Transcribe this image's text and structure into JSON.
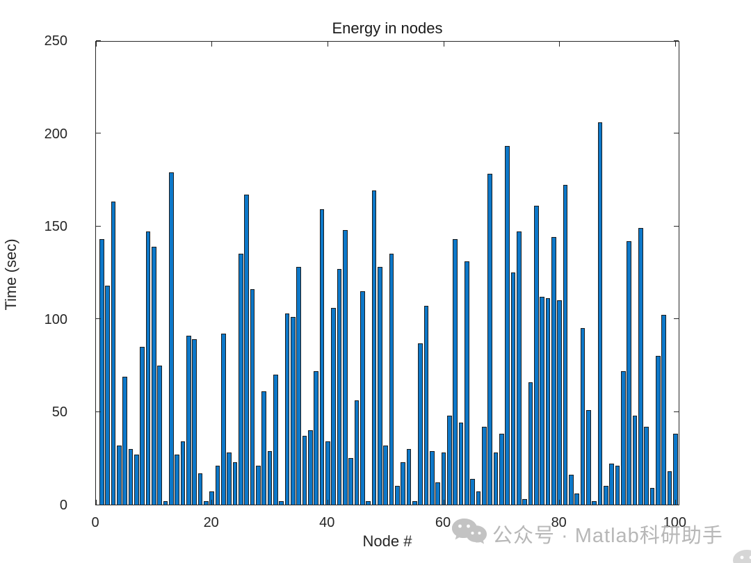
{
  "title": "Energy in nodes",
  "xlabel": "Node #",
  "ylabel": "Time (sec)",
  "watermark": {
    "icon": "wechat-icon",
    "text": "公众号 · Matlab科研助手"
  },
  "chart_data": {
    "type": "bar",
    "title": "Energy in nodes",
    "xlabel": "Node #",
    "ylabel": "Time (sec)",
    "x": [
      1,
      2,
      3,
      4,
      5,
      6,
      7,
      8,
      9,
      10,
      11,
      12,
      13,
      14,
      15,
      16,
      17,
      18,
      19,
      20,
      21,
      22,
      23,
      24,
      25,
      26,
      27,
      28,
      29,
      30,
      31,
      32,
      33,
      34,
      35,
      36,
      37,
      38,
      39,
      40,
      41,
      42,
      43,
      44,
      45,
      46,
      47,
      48,
      49,
      50,
      51,
      52,
      53,
      54,
      55,
      56,
      57,
      58,
      59,
      60,
      61,
      62,
      63,
      64,
      65,
      66,
      67,
      68,
      69,
      70,
      71,
      72,
      73,
      74,
      75,
      76,
      77,
      78,
      79,
      80,
      81,
      82,
      83,
      84,
      85,
      86,
      87,
      88,
      89,
      90,
      91,
      92,
      93,
      94,
      95,
      96,
      97,
      98,
      99,
      100
    ],
    "values": [
      143,
      118,
      163,
      32,
      69,
      30,
      27,
      85,
      147,
      139,
      75,
      2,
      179,
      27,
      34,
      91,
      89,
      17,
      2,
      7,
      21,
      92,
      28,
      23,
      135,
      167,
      116,
      21,
      61,
      29,
      70,
      2,
      103,
      101,
      128,
      37,
      40,
      72,
      159,
      34,
      106,
      127,
      148,
      25,
      56,
      115,
      2,
      169,
      128,
      32,
      135,
      10,
      23,
      30,
      2,
      87,
      107,
      29,
      12,
      28,
      48,
      143,
      44,
      131,
      14,
      7,
      42,
      178,
      28,
      38,
      193,
      125,
      147,
      3,
      66,
      161,
      112,
      111,
      144,
      110,
      172,
      16,
      6,
      95,
      51,
      2,
      206,
      10,
      22,
      21,
      72,
      142,
      48,
      149,
      42,
      9,
      80,
      102,
      18,
      38
    ],
    "xlim": [
      0,
      100.8
    ],
    "ylim": [
      0,
      250
    ],
    "x_ticks": [
      0,
      20,
      40,
      60,
      80,
      100
    ],
    "y_ticks": [
      0,
      50,
      100,
      150,
      200,
      250
    ],
    "bar_width_data": 0.8,
    "bar_color": "#0d78c9",
    "bar_edge_color": "#1c1c1c",
    "grid": false,
    "legend": null,
    "box": true,
    "tick_direction": "in"
  }
}
